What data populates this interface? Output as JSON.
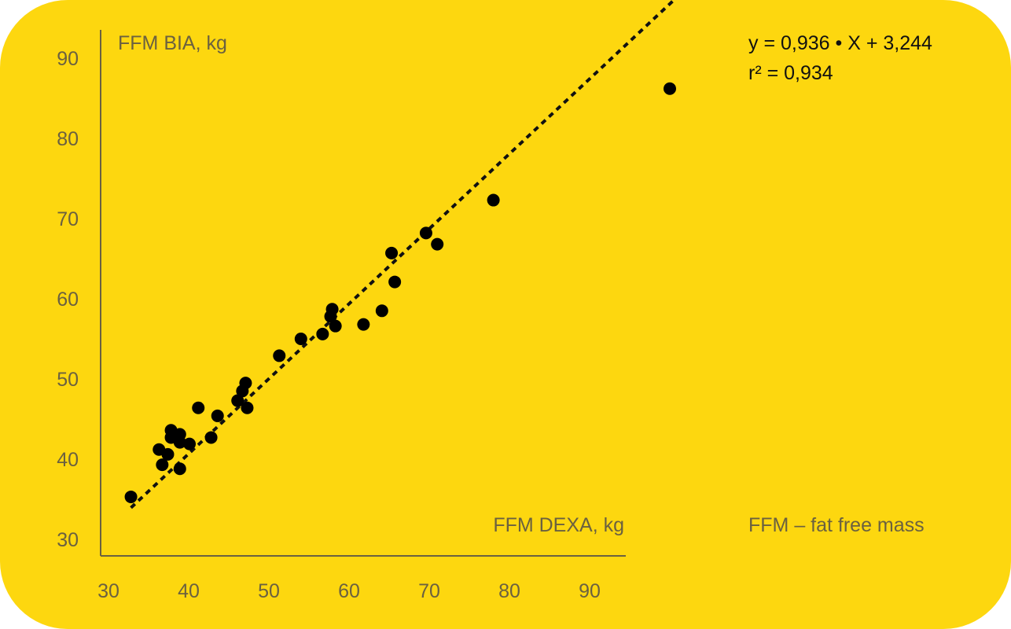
{
  "chart_data": {
    "type": "scatter",
    "ylabel": "FFM BIA, kg",
    "xlabel": "FFM DEXA, kg",
    "xlim": [
      30,
      95
    ],
    "ylim": [
      30,
      92
    ],
    "x_ticks": [
      30,
      40,
      50,
      60,
      70,
      80,
      90
    ],
    "y_ticks": [
      30,
      40,
      50,
      60,
      70,
      80,
      90
    ],
    "grid": false,
    "equation": "y = 0,936 • X + 3,244",
    "r_squared": "r² = 0,934",
    "note": "FFM – fat free mass",
    "trendline": {
      "slope": 0.936,
      "intercept": 3.244,
      "x_range": [
        32.8,
        101
      ],
      "style": "dashed"
    },
    "points": [
      {
        "x": 32.8,
        "y": 35.3
      },
      {
        "x": 36.7,
        "y": 39.3
      },
      {
        "x": 38.9,
        "y": 38.8
      },
      {
        "x": 36.3,
        "y": 41.2
      },
      {
        "x": 37.4,
        "y": 40.6
      },
      {
        "x": 37.8,
        "y": 42.7
      },
      {
        "x": 37.8,
        "y": 43.6
      },
      {
        "x": 38.9,
        "y": 42.1
      },
      {
        "x": 38.9,
        "y": 43.1
      },
      {
        "x": 40.1,
        "y": 41.9
      },
      {
        "x": 41.2,
        "y": 46.4
      },
      {
        "x": 42.8,
        "y": 42.7
      },
      {
        "x": 43.6,
        "y": 45.4
      },
      {
        "x": 46.1,
        "y": 47.3
      },
      {
        "x": 46.7,
        "y": 48.5
      },
      {
        "x": 47.1,
        "y": 49.5
      },
      {
        "x": 47.3,
        "y": 46.4
      },
      {
        "x": 51.3,
        "y": 52.9
      },
      {
        "x": 54.0,
        "y": 55.0
      },
      {
        "x": 56.7,
        "y": 55.6
      },
      {
        "x": 57.7,
        "y": 57.8
      },
      {
        "x": 57.9,
        "y": 58.7
      },
      {
        "x": 58.3,
        "y": 56.6
      },
      {
        "x": 61.8,
        "y": 56.8
      },
      {
        "x": 64.1,
        "y": 58.5
      },
      {
        "x": 65.3,
        "y": 65.7
      },
      {
        "x": 65.7,
        "y": 62.1
      },
      {
        "x": 69.6,
        "y": 68.2
      },
      {
        "x": 71.0,
        "y": 66.8
      },
      {
        "x": 78.0,
        "y": 72.3
      },
      {
        "x": 100.0,
        "y": 86.2
      }
    ]
  }
}
